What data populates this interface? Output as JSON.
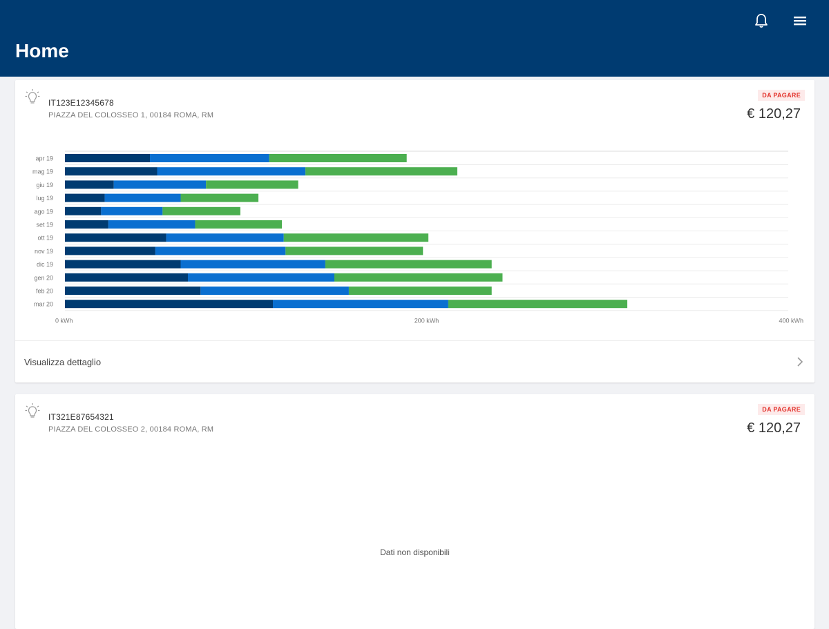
{
  "header": {
    "title": "Home",
    "notification_icon": "bell-icon",
    "menu_icon": "menu-icon"
  },
  "colors": {
    "header_bg": "#003b71",
    "series": [
      "#003b71",
      "#0a6fd0",
      "#4caf50"
    ],
    "badge_text": "#e3322b",
    "badge_bg": "#fdeaea"
  },
  "cards": [
    {
      "icon": "lightbulb-icon",
      "code": "IT123E12345678",
      "address": "PIAZZA DEL COLOSSEO 1, 00184 ROMA, RM",
      "badge": "DA PAGARE",
      "amount": "€ 120,27",
      "detail_label": "Visualizza dettaglio",
      "detail_icon": "chevron-right-icon"
    },
    {
      "icon": "lightbulb-icon",
      "code": "IT321E87654321",
      "address": "PIAZZA DEL COLOSSEO 2, 00184 ROMA, RM",
      "badge": "DA PAGARE",
      "amount": "€ 120,27",
      "empty_message": "Dati non disponibili"
    }
  ],
  "chart_data": {
    "type": "bar",
    "orientation": "horizontal",
    "stacked": true,
    "categories": [
      "apr 19",
      "mag 19",
      "giu 19",
      "lug 19",
      "ago 19",
      "set 19",
      "ott 19",
      "nov 19",
      "dic 19",
      "gen 20",
      "feb 20",
      "mar 20"
    ],
    "series": [
      {
        "values": [
          47,
          51,
          27,
          22,
          20,
          24,
          56,
          50,
          64,
          68,
          75,
          115
        ]
      },
      {
        "values": [
          66,
          82,
          51,
          42,
          34,
          48,
          65,
          72,
          80,
          81,
          82,
          97
        ]
      },
      {
        "values": [
          76,
          84,
          51,
          43,
          43,
          48,
          80,
          76,
          92,
          93,
          79,
          99
        ]
      }
    ],
    "xticks": [
      "0 kWh",
      "200 kWh",
      "400 kWh"
    ],
    "xlim": [
      0,
      400
    ],
    "grid": true
  }
}
